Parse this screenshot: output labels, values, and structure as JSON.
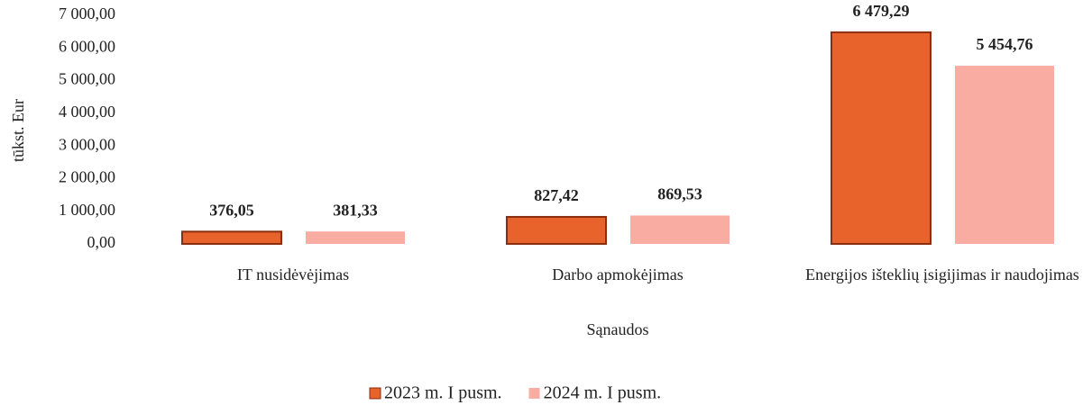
{
  "chart_data": {
    "type": "bar",
    "categories": [
      "IT nusidėvėjimas",
      "Darbo apmokėjimas",
      "Energijos išteklių įsigijimas ir naudojimas"
    ],
    "series": [
      {
        "name": "2023 m. I pusm.",
        "color": "#e8622c",
        "values": [
          376.05,
          827.42,
          6479.29
        ],
        "value_labels": [
          "376,05",
          "827,42",
          "6 479,29"
        ]
      },
      {
        "name": "2024 m. I pusm.",
        "color": "#f9aca2",
        "values": [
          381.33,
          869.53,
          5454.76
        ],
        "value_labels": [
          "381,33",
          "869,53",
          "5 454,76"
        ]
      }
    ],
    "ylabel": "tūkst. Eur",
    "xlabel": "Sąnaudos",
    "ylim": [
      0,
      7000
    ],
    "yticks": [
      {
        "value": 0,
        "label": "0,00"
      },
      {
        "value": 1000,
        "label": "1 000,00"
      },
      {
        "value": 2000,
        "label": "2 000,00"
      },
      {
        "value": 3000,
        "label": "3 000,00"
      },
      {
        "value": 4000,
        "label": "4 000,00"
      },
      {
        "value": 5000,
        "label": "5 000,00"
      },
      {
        "value": 6000,
        "label": "6 000,00"
      },
      {
        "value": 7000,
        "label": "7 000,00"
      }
    ],
    "legend": "bottom"
  }
}
